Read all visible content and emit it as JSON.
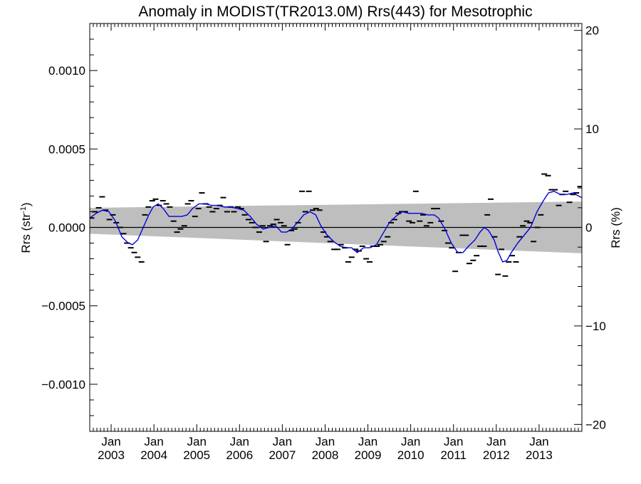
{
  "chart_data": {
    "type": "line",
    "title": "Anomaly in MODIST(TR2013.0M) Rrs(443) for Mesotrophic",
    "ylabel_left": "Rrs (str",
    "ylabel_left_sup": "-1",
    "ylabel_left_close": ")",
    "ylabel_right": "Rrs (%)",
    "x_start": 2002.5,
    "x_end": 2014.0,
    "ylim": [
      -0.0013,
      0.0013
    ],
    "ylim_right": [
      -20.7,
      20.7
    ],
    "grid": false,
    "y_ticks": [
      {
        "value": -0.001,
        "label": "−0.0010"
      },
      {
        "value": -0.0005,
        "label": "−0.0005"
      },
      {
        "value": 0.0,
        "label": "0.0000"
      },
      {
        "value": 0.0005,
        "label": "0.0005"
      },
      {
        "value": 0.001,
        "label": "0.0010"
      }
    ],
    "y_right_ticks": [
      {
        "value": -20,
        "label": "−20"
      },
      {
        "value": -10,
        "label": "−10"
      },
      {
        "value": 0,
        "label": "0"
      },
      {
        "value": 10,
        "label": "10"
      },
      {
        "value": 20,
        "label": "20"
      }
    ],
    "x_ticks": [
      {
        "value": 2003.0,
        "month": "Jan",
        "year": "2003"
      },
      {
        "value": 2004.0,
        "month": "Jan",
        "year": "2004"
      },
      {
        "value": 2005.0,
        "month": "Jan",
        "year": "2005"
      },
      {
        "value": 2006.0,
        "month": "Jan",
        "year": "2006"
      },
      {
        "value": 2007.0,
        "month": "Jan",
        "year": "2007"
      },
      {
        "value": 2008.0,
        "month": "Jan",
        "year": "2008"
      },
      {
        "value": 2009.0,
        "month": "Jan",
        "year": "2009"
      },
      {
        "value": 2010.0,
        "month": "Jan",
        "year": "2010"
      },
      {
        "value": 2011.0,
        "month": "Jan",
        "year": "2011"
      },
      {
        "value": 2012.0,
        "month": "Jan",
        "year": "2012"
      },
      {
        "value": 2013.0,
        "month": "Jan",
        "year": "2013"
      }
    ],
    "confidence_band": {
      "upper": [
        [
          2002.5,
          0.000125
        ],
        [
          2014.0,
          0.000165
        ]
      ],
      "lower": [
        [
          2002.5,
          -4e-05
        ],
        [
          2014.0,
          -0.000165
        ]
      ],
      "color": "#bebebe"
    },
    "zero_line_color": "#000000",
    "series": [
      {
        "type": "scatter",
        "marker": "dash",
        "color": "#000000",
        "points": [
          [
            2002.54,
            6e-05
          ],
          [
            2002.62,
            0.0001
          ],
          [
            2002.71,
            0.000125
          ],
          [
            2002.79,
            0.000195
          ],
          [
            2002.87,
            0.00011
          ],
          [
            2002.96,
            5e-05
          ],
          [
            2003.04,
            8e-05
          ],
          [
            2003.12,
            3e-05
          ],
          [
            2003.21,
            0.0
          ],
          [
            2003.29,
            -4e-05
          ],
          [
            2003.37,
            -0.0001
          ],
          [
            2003.46,
            -0.00013
          ],
          [
            2003.54,
            -0.00016
          ],
          [
            2003.62,
            -0.00019
          ],
          [
            2003.71,
            -0.00022
          ],
          [
            2003.79,
            8e-05
          ],
          [
            2003.87,
            0.00013
          ],
          [
            2003.96,
            0.00017
          ],
          [
            2004.04,
            0.00018
          ],
          [
            2004.12,
            0.00014
          ],
          [
            2004.21,
            0.00017
          ],
          [
            2004.29,
            0.00015
          ],
          [
            2004.37,
            0.00013
          ],
          [
            2004.46,
            4e-05
          ],
          [
            2004.54,
            -3e-05
          ],
          [
            2004.62,
            -1e-05
          ],
          [
            2004.71,
            1e-05
          ],
          [
            2004.79,
            0.00015
          ],
          [
            2004.87,
            0.00017
          ],
          [
            2004.96,
            7e-05
          ],
          [
            2005.04,
            0.00012
          ],
          [
            2005.12,
            0.00022
          ],
          [
            2005.21,
            0.00015
          ],
          [
            2005.29,
            0.00013
          ],
          [
            2005.37,
            0.0001
          ],
          [
            2005.46,
            0.00012
          ],
          [
            2005.54,
            0.00014
          ],
          [
            2005.62,
            0.00019
          ],
          [
            2005.71,
            0.0001
          ],
          [
            2005.79,
            0.00013
          ],
          [
            2005.87,
            0.0001
          ],
          [
            2005.96,
            0.00013
          ],
          [
            2006.04,
            0.00012
          ],
          [
            2006.12,
            8e-05
          ],
          [
            2006.21,
            5e-05
          ],
          [
            2006.29,
            3e-05
          ],
          [
            2006.37,
            0.0
          ],
          [
            2006.46,
            -3e-05
          ],
          [
            2006.54,
            1e-05
          ],
          [
            2006.62,
            -9e-05
          ],
          [
            2006.71,
            1e-05
          ],
          [
            2006.79,
            2e-05
          ],
          [
            2006.87,
            5e-05
          ],
          [
            2006.96,
            3e-05
          ],
          [
            2007.04,
            1e-05
          ],
          [
            2007.12,
            -0.00011
          ],
          [
            2007.21,
            -2e-05
          ],
          [
            2007.29,
            -1e-05
          ],
          [
            2007.37,
            3e-05
          ],
          [
            2007.46,
            0.00023
          ],
          [
            2007.54,
            0.0001
          ],
          [
            2007.62,
            0.00023
          ],
          [
            2007.71,
            0.00011
          ],
          [
            2007.79,
            0.00012
          ],
          [
            2007.87,
            0.00011
          ],
          [
            2007.96,
            -3e-05
          ],
          [
            2008.04,
            -6e-05
          ],
          [
            2008.12,
            -9e-05
          ],
          [
            2008.21,
            -0.00014
          ],
          [
            2008.29,
            -0.00014
          ],
          [
            2008.37,
            -0.00011
          ],
          [
            2008.46,
            -0.00013
          ],
          [
            2008.54,
            -0.00022
          ],
          [
            2008.62,
            -0.00019
          ],
          [
            2008.71,
            -0.00014
          ],
          [
            2008.79,
            -0.00015
          ],
          [
            2008.87,
            -0.00012
          ],
          [
            2008.96,
            -0.0002
          ],
          [
            2009.04,
            -0.00022
          ],
          [
            2009.12,
            -0.00012
          ],
          [
            2009.21,
            -0.00012
          ],
          [
            2009.29,
            -0.00011
          ],
          [
            2009.37,
            -9e-05
          ],
          [
            2009.46,
            -6e-05
          ],
          [
            2009.54,
            3e-05
          ],
          [
            2009.62,
            5e-05
          ],
          [
            2009.71,
            9e-05
          ],
          [
            2009.79,
            0.0001
          ],
          [
            2009.87,
            0.0001
          ],
          [
            2009.96,
            4e-05
          ],
          [
            2010.04,
            3e-05
          ],
          [
            2010.12,
            0.00023
          ],
          [
            2010.21,
            4e-05
          ],
          [
            2010.29,
            8e-05
          ],
          [
            2010.37,
            1e-05
          ],
          [
            2010.46,
            3e-05
          ],
          [
            2010.54,
            0.00012
          ],
          [
            2010.62,
            0.00012
          ],
          [
            2010.71,
            4e-05
          ],
          [
            2010.79,
            -2e-05
          ],
          [
            2010.87,
            -0.0001
          ],
          [
            2010.96,
            -0.00013
          ],
          [
            2011.04,
            -0.00028
          ],
          [
            2011.12,
            -0.00016
          ],
          [
            2011.21,
            -5e-05
          ],
          [
            2011.29,
            -5e-05
          ],
          [
            2011.37,
            -0.00023
          ],
          [
            2011.46,
            -0.00021
          ],
          [
            2011.54,
            -0.00018
          ],
          [
            2011.62,
            -0.00012
          ],
          [
            2011.71,
            -0.00012
          ],
          [
            2011.79,
            8e-05
          ],
          [
            2011.87,
            0.00018
          ],
          [
            2011.96,
            -6e-05
          ],
          [
            2012.04,
            -0.0003
          ],
          [
            2012.12,
            -0.00014
          ],
          [
            2012.21,
            -0.00031
          ],
          [
            2012.29,
            -0.00022
          ],
          [
            2012.37,
            -0.00018
          ],
          [
            2012.46,
            -0.00022
          ],
          [
            2012.54,
            -6e-05
          ],
          [
            2012.62,
            1e-05
          ],
          [
            2012.71,
            4e-05
          ],
          [
            2012.79,
            3e-05
          ],
          [
            2012.87,
            -9e-05
          ],
          [
            2012.96,
            0.0
          ],
          [
            2013.04,
            8e-05
          ],
          [
            2013.12,
            0.00034
          ],
          [
            2013.21,
            0.00033
          ],
          [
            2013.29,
            0.00024
          ],
          [
            2013.37,
            0.00024
          ],
          [
            2013.46,
            0.00014
          ],
          [
            2013.54,
            0.00021
          ],
          [
            2013.62,
            0.00023
          ],
          [
            2013.71,
            0.00016
          ],
          [
            2013.79,
            0.00021
          ],
          [
            2013.87,
            0.00022
          ],
          [
            2013.96,
            0.00026
          ]
        ]
      },
      {
        "type": "line",
        "color": "#0000dd",
        "points": [
          [
            2002.5,
            6e-05
          ],
          [
            2002.65,
            9e-05
          ],
          [
            2002.8,
            0.00011
          ],
          [
            2002.95,
            0.0001
          ],
          [
            2003.1,
            4e-05
          ],
          [
            2003.25,
            -6e-05
          ],
          [
            2003.4,
            -0.0001
          ],
          [
            2003.5,
            -0.00011
          ],
          [
            2003.62,
            -8e-05
          ],
          [
            2003.75,
            0.0
          ],
          [
            2003.88,
            8e-05
          ],
          [
            2003.98,
            0.00013
          ],
          [
            2004.1,
            0.00015
          ],
          [
            2004.22,
            0.00012
          ],
          [
            2004.35,
            7e-05
          ],
          [
            2004.5,
            7e-05
          ],
          [
            2004.65,
            7e-05
          ],
          [
            2004.78,
            8e-05
          ],
          [
            2004.9,
            0.00012
          ],
          [
            2005.05,
            0.00015
          ],
          [
            2005.2,
            0.00015
          ],
          [
            2005.35,
            0.00014
          ],
          [
            2005.5,
            0.00014
          ],
          [
            2005.65,
            0.00013
          ],
          [
            2005.8,
            0.00013
          ],
          [
            2005.95,
            0.00012
          ],
          [
            2006.1,
            0.00011
          ],
          [
            2006.25,
            7e-05
          ],
          [
            2006.4,
            2e-05
          ],
          [
            2006.55,
            -1e-05
          ],
          [
            2006.7,
            0.0
          ],
          [
            2006.85,
            1e-05
          ],
          [
            2006.98,
            -3e-05
          ],
          [
            2007.1,
            -3e-05
          ],
          [
            2007.22,
            -1e-05
          ],
          [
            2007.35,
            3e-05
          ],
          [
            2007.5,
            8e-05
          ],
          [
            2007.65,
            0.0001
          ],
          [
            2007.78,
            8e-05
          ],
          [
            2007.9,
            1e-05
          ],
          [
            2008.05,
            -5e-05
          ],
          [
            2008.2,
            -9e-05
          ],
          [
            2008.35,
            -0.00012
          ],
          [
            2008.5,
            -0.00013
          ],
          [
            2008.62,
            -0.00013
          ],
          [
            2008.75,
            -0.00016
          ],
          [
            2008.9,
            -0.00013
          ],
          [
            2009.05,
            -0.00013
          ],
          [
            2009.2,
            -0.00011
          ],
          [
            2009.35,
            -4e-05
          ],
          [
            2009.5,
            3e-05
          ],
          [
            2009.65,
            7e-05
          ],
          [
            2009.8,
            0.0001
          ],
          [
            2009.95,
            9e-05
          ],
          [
            2010.1,
            9e-05
          ],
          [
            2010.25,
            9e-05
          ],
          [
            2010.4,
            8e-05
          ],
          [
            2010.55,
            8e-05
          ],
          [
            2010.65,
            6e-05
          ],
          [
            2010.8,
            -1e-05
          ],
          [
            2010.95,
            -0.0001
          ],
          [
            2011.1,
            -0.00016
          ],
          [
            2011.22,
            -0.00016
          ],
          [
            2011.35,
            -0.00012
          ],
          [
            2011.5,
            -8e-05
          ],
          [
            2011.62,
            -3e-05
          ],
          [
            2011.72,
            0.0
          ],
          [
            2011.82,
            -2e-05
          ],
          [
            2011.95,
            -8e-05
          ],
          [
            2012.05,
            -0.00016
          ],
          [
            2012.15,
            -0.00022
          ],
          [
            2012.25,
            -0.00021
          ],
          [
            2012.35,
            -0.00016
          ],
          [
            2012.5,
            -0.0001
          ],
          [
            2012.65,
            -5e-05
          ],
          [
            2012.8,
            0.0
          ],
          [
            2012.95,
            0.0001
          ],
          [
            2013.1,
            0.00017
          ],
          [
            2013.22,
            0.00022
          ],
          [
            2013.35,
            0.00023
          ],
          [
            2013.5,
            0.00021
          ],
          [
            2013.65,
            0.00021
          ],
          [
            2013.8,
            0.00022
          ],
          [
            2013.92,
            0.0002
          ],
          [
            2014.0,
            0.00019
          ]
        ]
      }
    ]
  }
}
